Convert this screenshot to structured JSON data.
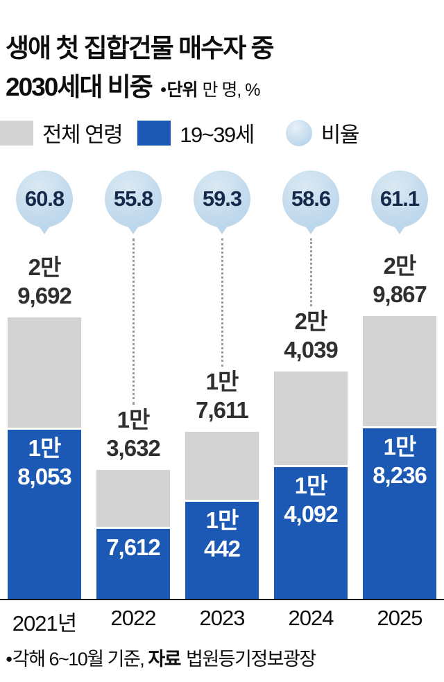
{
  "header": {
    "title_line1": "생애 첫 집합건물 매수자 중",
    "title_line2": "2030세대 비중",
    "unit_bullet": "●",
    "unit_label": "단위",
    "unit_value": "만 명, %"
  },
  "legend": {
    "total": "전체 연령",
    "youth": "19~39세",
    "ratio": "비율"
  },
  "colors": {
    "blue": "#1c59b4",
    "gray": "#d2d2d2",
    "bubble": "#bdd7eb",
    "bubble_text": "#16294a"
  },
  "chart_data": {
    "type": "bar",
    "categories": [
      "2021년",
      "2022",
      "2023",
      "2024",
      "2025"
    ],
    "series": [
      {
        "name": "전체 연령",
        "values": [
          29692,
          13632,
          17611,
          24039,
          29867
        ]
      },
      {
        "name": "19~39세",
        "values": [
          18053,
          7612,
          10442,
          14092,
          18236
        ]
      },
      {
        "name": "비율(%)",
        "values": [
          60.8,
          55.8,
          59.3,
          58.6,
          61.1
        ]
      }
    ],
    "total_labels": [
      [
        "2만",
        "9,692"
      ],
      [
        "1만",
        "3,632"
      ],
      [
        "1만",
        "7,611"
      ],
      [
        "2만",
        "4,039"
      ],
      [
        "2만",
        "9,867"
      ]
    ],
    "youth_labels": [
      [
        "1만",
        "8,053"
      ],
      [
        "7,612"
      ],
      [
        "1만",
        "442"
      ],
      [
        "1만",
        "4,092"
      ],
      [
        "1만",
        "8,236"
      ]
    ],
    "ratio_labels": [
      "60.8",
      "55.8",
      "59.3",
      "58.6",
      "61.1"
    ],
    "title": "생애 첫 집합건물 매수자 중 2030세대 비중",
    "xlabel": "",
    "ylabel": "",
    "ylim": [
      0,
      30000
    ],
    "legend_position": "top",
    "grid": false
  },
  "footer": {
    "bullet": "●",
    "note": "각해 6~10월 기준,",
    "source_label": "자료",
    "source_value": "법원등기정보광장"
  }
}
